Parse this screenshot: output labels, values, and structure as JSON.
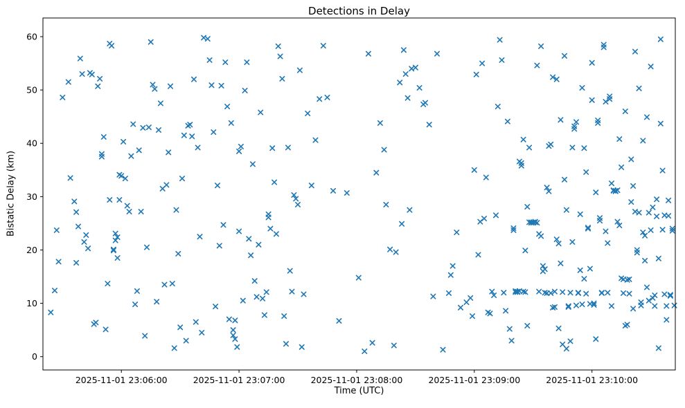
{
  "chart_data": {
    "type": "scatter",
    "title": "Detections in Delay",
    "xlabel": "Time (UTC)",
    "ylabel": "Bistatic Delay (km)",
    "marker": "x",
    "marker_color": "#1f77b4",
    "grid": false,
    "legend": "none",
    "x_origin": "2025-11-01 23:05:00",
    "x_unit": "seconds since x_origin",
    "xlim_seconds": [
      20,
      342.5
    ],
    "ylim": [
      -2.5,
      63.5
    ],
    "yticks": [
      0,
      10,
      20,
      30,
      40,
      50,
      60
    ],
    "xticks": [
      {
        "seconds": 60,
        "label": "2025-11-01 23:06:00"
      },
      {
        "seconds": 120,
        "label": "2025-11-01 23:07:00"
      },
      {
        "seconds": 180,
        "label": "2025-11-01 23:08:00"
      },
      {
        "seconds": 240,
        "label": "2025-11-01 23:09:00"
      },
      {
        "seconds": 300,
        "label": "2025-11-01 23:10:00"
      }
    ],
    "points": [
      [
        24,
        8.3
      ],
      [
        26,
        12.4
      ],
      [
        27,
        23.7
      ],
      [
        28,
        17.8
      ],
      [
        30,
        48.6
      ],
      [
        33,
        51.5
      ],
      [
        34,
        33.5
      ],
      [
        36,
        29.1
      ],
      [
        37,
        27.1
      ],
      [
        37,
        17.6
      ],
      [
        38,
        24.4
      ],
      [
        39,
        55.9
      ],
      [
        40,
        53.0
      ],
      [
        41,
        21.5
      ],
      [
        42,
        22.8
      ],
      [
        43,
        20.3
      ],
      [
        44,
        53.2
      ],
      [
        45,
        52.9
      ],
      [
        46,
        6.1
      ],
      [
        47,
        6.4
      ],
      [
        48,
        50.7
      ],
      [
        49,
        52.1
      ],
      [
        50,
        37.5
      ],
      [
        50,
        38.0
      ],
      [
        51,
        41.2
      ],
      [
        52,
        5.1
      ],
      [
        53,
        13.7
      ],
      [
        54,
        29.4
      ],
      [
        54,
        58.7
      ],
      [
        55,
        58.3
      ],
      [
        56,
        20.1
      ],
      [
        56,
        19.9
      ],
      [
        57,
        21.8
      ],
      [
        57,
        23.1
      ],
      [
        58,
        22.4
      ],
      [
        58,
        18.5
      ],
      [
        59,
        34.1
      ],
      [
        59,
        29.4
      ],
      [
        60,
        33.9
      ],
      [
        61,
        40.3
      ],
      [
        62,
        33.4
      ],
      [
        63,
        28.3
      ],
      [
        64,
        27.2
      ],
      [
        65,
        37.6
      ],
      [
        66,
        43.6
      ],
      [
        67,
        9.8
      ],
      [
        68,
        12.3
      ],
      [
        69,
        38.7
      ],
      [
        70,
        27.2
      ],
      [
        71,
        42.9
      ],
      [
        72,
        3.9
      ],
      [
        73,
        20.5
      ],
      [
        74,
        43.0
      ],
      [
        75,
        59.0
      ],
      [
        76,
        51.0
      ],
      [
        77,
        50.2
      ],
      [
        78,
        10.3
      ],
      [
        79,
        42.5
      ],
      [
        80,
        47.5
      ],
      [
        81,
        31.5
      ],
      [
        82,
        13.5
      ],
      [
        83,
        32.2
      ],
      [
        84,
        38.3
      ],
      [
        85,
        50.7
      ],
      [
        86,
        13.7
      ],
      [
        87,
        1.6
      ],
      [
        88,
        27.5
      ],
      [
        89,
        19.3
      ],
      [
        90,
        5.5
      ],
      [
        91,
        33.4
      ],
      [
        92,
        41.5
      ],
      [
        93,
        3.0
      ],
      [
        94,
        43.3
      ],
      [
        95,
        43.5
      ],
      [
        96,
        41.3
      ],
      [
        97,
        52.0
      ],
      [
        98,
        6.5
      ],
      [
        99,
        39.2
      ],
      [
        100,
        22.5
      ],
      [
        101,
        4.5
      ],
      [
        102,
        59.8
      ],
      [
        104,
        59.6
      ],
      [
        105,
        55.6
      ],
      [
        106,
        50.9
      ],
      [
        107,
        42.1
      ],
      [
        108,
        9.4
      ],
      [
        109,
        32.1
      ],
      [
        110,
        20.8
      ],
      [
        111,
        50.8
      ],
      [
        112,
        24.7
      ],
      [
        113,
        55.2
      ],
      [
        114,
        46.9
      ],
      [
        115,
        7.0
      ],
      [
        116,
        43.8
      ],
      [
        117,
        5.0
      ],
      [
        117,
        4.0
      ],
      [
        118,
        3.3
      ],
      [
        118,
        6.8
      ],
      [
        119,
        1.8
      ],
      [
        120,
        38.5
      ],
      [
        120,
        23.5
      ],
      [
        121,
        39.4
      ],
      [
        122,
        10.5
      ],
      [
        123,
        49.9
      ],
      [
        124,
        55.2
      ],
      [
        125,
        22.1
      ],
      [
        126,
        19.0
      ],
      [
        127,
        36.1
      ],
      [
        128,
        14.2
      ],
      [
        129,
        11.2
      ],
      [
        130,
        21.0
      ],
      [
        131,
        45.8
      ],
      [
        132,
        10.9
      ],
      [
        133,
        7.8
      ],
      [
        134,
        12.1
      ],
      [
        135,
        26.1
      ],
      [
        135,
        26.7
      ],
      [
        136,
        24.0
      ],
      [
        137,
        39.1
      ],
      [
        138,
        32.7
      ],
      [
        139,
        23.0
      ],
      [
        140,
        58.2
      ],
      [
        141,
        56.3
      ],
      [
        142,
        52.1
      ],
      [
        143,
        7.6
      ],
      [
        144,
        2.4
      ],
      [
        145,
        39.2
      ],
      [
        146,
        16.1
      ],
      [
        147,
        12.2
      ],
      [
        148,
        30.3
      ],
      [
        149,
        29.6
      ],
      [
        150,
        28.5
      ],
      [
        151,
        53.7
      ],
      [
        152,
        1.8
      ],
      [
        153,
        11.7
      ],
      [
        155,
        45.6
      ],
      [
        157,
        32.1
      ],
      [
        159,
        40.6
      ],
      [
        161,
        48.3
      ],
      [
        163,
        58.3
      ],
      [
        165,
        48.6
      ],
      [
        168,
        31.1
      ],
      [
        171,
        6.7
      ],
      [
        175,
        30.7
      ],
      [
        181,
        14.8
      ],
      [
        184,
        1.0
      ],
      [
        186,
        56.8
      ],
      [
        188,
        2.6
      ],
      [
        190,
        34.5
      ],
      [
        192,
        43.8
      ],
      [
        194,
        38.8
      ],
      [
        195,
        28.5
      ],
      [
        197,
        20.1
      ],
      [
        199,
        2.1
      ],
      [
        200,
        19.6
      ],
      [
        202,
        51.4
      ],
      [
        203,
        24.9
      ],
      [
        204,
        57.5
      ],
      [
        205,
        53.0
      ],
      [
        206,
        48.5
      ],
      [
        207,
        27.5
      ],
      [
        208,
        54.0
      ],
      [
        210,
        54.2
      ],
      [
        212,
        50.4
      ],
      [
        214,
        47.3
      ],
      [
        215,
        47.6
      ],
      [
        217,
        43.5
      ],
      [
        219,
        11.3
      ],
      [
        221,
        56.8
      ],
      [
        224,
        1.3
      ],
      [
        227,
        11.9
      ],
      [
        228,
        15.3
      ],
      [
        229,
        17.0
      ],
      [
        231,
        23.3
      ],
      [
        233,
        9.2
      ],
      [
        236,
        10.2
      ],
      [
        238,
        11.0
      ],
      [
        239,
        7.6
      ],
      [
        240,
        35.0
      ],
      [
        241,
        52.9
      ],
      [
        242,
        19.1
      ],
      [
        243,
        25.3
      ],
      [
        244,
        55.0
      ],
      [
        245,
        25.9
      ],
      [
        246,
        33.6
      ],
      [
        247,
        8.3
      ],
      [
        248,
        8.1
      ],
      [
        249,
        12.2
      ],
      [
        250,
        11.5
      ],
      [
        251,
        26.5
      ],
      [
        252,
        46.9
      ],
      [
        253,
        59.4
      ],
      [
        254,
        55.6
      ],
      [
        255,
        12.0
      ],
      [
        256,
        8.6
      ],
      [
        257,
        44.1
      ],
      [
        258,
        5.2
      ],
      [
        259,
        3.0
      ],
      [
        260,
        24.1
      ],
      [
        260,
        23.7
      ],
      [
        261,
        12.1
      ],
      [
        261,
        12.3
      ],
      [
        262,
        12.2
      ],
      [
        262,
        12.1
      ],
      [
        263,
        12.3
      ],
      [
        263,
        36.6
      ],
      [
        264,
        36.3
      ],
      [
        264,
        35.8
      ],
      [
        265,
        40.7
      ],
      [
        265,
        12.2
      ],
      [
        266,
        12.1
      ],
      [
        266,
        19.9
      ],
      [
        267,
        28.1
      ],
      [
        267,
        5.8
      ],
      [
        268,
        39.2
      ],
      [
        268,
        25.2
      ],
      [
        269,
        25.1
      ],
      [
        269,
        25.2
      ],
      [
        270,
        25.2
      ],
      [
        270,
        25.1
      ],
      [
        271,
        25.2
      ],
      [
        271,
        25.3
      ],
      [
        272,
        25.1
      ],
      [
        272,
        54.6
      ],
      [
        273,
        12.2
      ],
      [
        273,
        23.0
      ],
      [
        274,
        22.6
      ],
      [
        274,
        58.2
      ],
      [
        275,
        16.0
      ],
      [
        275,
        17.0
      ],
      [
        276,
        16.4
      ],
      [
        276,
        12.0
      ],
      [
        277,
        11.9
      ],
      [
        277,
        31.7
      ],
      [
        278,
        31.0
      ],
      [
        278,
        39.5
      ],
      [
        279,
        39.8
      ],
      [
        279,
        11.9
      ],
      [
        280,
        52.4
      ],
      [
        280,
        9.2
      ],
      [
        281,
        9.3
      ],
      [
        281,
        12.2
      ],
      [
        282,
        52.0
      ],
      [
        282,
        22.0
      ],
      [
        283,
        21.2
      ],
      [
        283,
        5.3
      ],
      [
        284,
        44.4
      ],
      [
        284,
        17.5
      ],
      [
        285,
        2.3
      ],
      [
        285,
        12.1
      ],
      [
        286,
        56.4
      ],
      [
        286,
        33.2
      ],
      [
        287,
        27.5
      ],
      [
        287,
        1.5
      ],
      [
        288,
        9.3
      ],
      [
        288,
        9.5
      ],
      [
        289,
        2.9
      ],
      [
        289,
        12.0
      ],
      [
        290,
        39.2
      ],
      [
        290,
        21.5
      ],
      [
        291,
        43.2
      ],
      [
        291,
        42.7
      ],
      [
        292,
        44.0
      ],
      [
        292,
        9.6
      ],
      [
        293,
        11.9
      ],
      [
        293,
        12.0
      ],
      [
        294,
        26.7
      ],
      [
        294,
        16.2
      ],
      [
        295,
        9.8
      ],
      [
        295,
        50.4
      ],
      [
        296,
        39.1
      ],
      [
        296,
        14.6
      ],
      [
        297,
        34.6
      ],
      [
        297,
        11.8
      ],
      [
        298,
        24.2
      ],
      [
        298,
        24.0
      ],
      [
        299,
        9.9
      ],
      [
        299,
        16.5
      ],
      [
        300,
        55.1
      ],
      [
        300,
        48.1
      ],
      [
        301,
        10.0
      ],
      [
        301,
        9.7
      ],
      [
        302,
        30.8
      ],
      [
        302,
        3.3
      ],
      [
        303,
        44.3
      ],
      [
        303,
        43.8
      ],
      [
        304,
        26.0
      ],
      [
        304,
        25.5
      ],
      [
        305,
        12.0
      ],
      [
        305,
        11.9
      ],
      [
        306,
        58.5
      ],
      [
        306,
        58.0
      ],
      [
        307,
        47.8
      ],
      [
        307,
        23.5
      ],
      [
        308,
        21.3
      ],
      [
        308,
        12.0
      ],
      [
        309,
        48.8
      ],
      [
        309,
        48.3
      ],
      [
        310,
        32.5
      ],
      [
        310,
        9.5
      ],
      [
        311,
        31.2
      ],
      [
        311,
        31.1
      ],
      [
        312,
        31.0
      ],
      [
        312,
        31.1
      ],
      [
        313,
        31.2
      ],
      [
        313,
        25.3
      ],
      [
        314,
        40.8
      ],
      [
        314,
        24.6
      ],
      [
        315,
        35.5
      ],
      [
        315,
        14.7
      ],
      [
        316,
        14.5
      ],
      [
        316,
        11.9
      ],
      [
        317,
        46.0
      ],
      [
        317,
        5.8
      ],
      [
        318,
        6.0
      ],
      [
        318,
        14.4
      ],
      [
        319,
        14.5
      ],
      [
        319,
        11.8
      ],
      [
        320,
        37.0
      ],
      [
        320,
        29.0
      ],
      [
        321,
        32.0
      ],
      [
        321,
        9.0
      ],
      [
        322,
        57.2
      ],
      [
        322,
        27.2
      ],
      [
        323,
        19.5
      ],
      [
        323,
        20.0
      ],
      [
        324,
        50.3
      ],
      [
        324,
        27.0
      ],
      [
        325,
        10.2
      ],
      [
        325,
        9.6
      ],
      [
        326,
        40.5
      ],
      [
        326,
        23.3
      ],
      [
        327,
        22.7
      ],
      [
        327,
        18.0
      ],
      [
        328,
        44.9
      ],
      [
        328,
        13.0
      ],
      [
        329,
        27.0
      ],
      [
        329,
        10.5
      ],
      [
        330,
        54.4
      ],
      [
        330,
        23.7
      ],
      [
        331,
        28.0
      ],
      [
        331,
        11.0
      ],
      [
        332,
        9.5
      ],
      [
        332,
        11.5
      ],
      [
        333,
        29.5
      ],
      [
        333,
        26.3
      ],
      [
        334,
        1.6
      ],
      [
        334,
        18.4
      ],
      [
        335,
        59.5
      ],
      [
        335,
        43.7
      ],
      [
        336,
        34.9
      ],
      [
        336,
        23.8
      ],
      [
        337,
        26.5
      ],
      [
        337,
        11.7
      ],
      [
        338,
        9.5
      ],
      [
        338,
        6.9
      ],
      [
        339,
        29.3
      ],
      [
        339,
        26.4
      ],
      [
        340,
        11.4
      ],
      [
        340,
        11.6
      ],
      [
        341,
        24.0
      ],
      [
        341,
        23.6
      ],
      [
        342,
        9.6
      ]
    ]
  }
}
